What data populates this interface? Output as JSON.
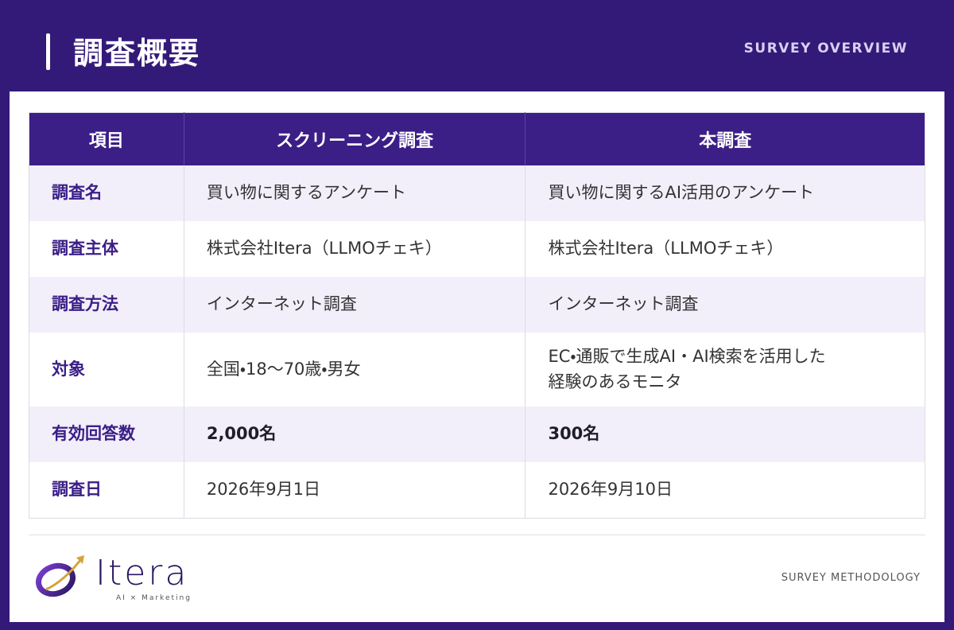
{
  "header": {
    "title": "調査概要",
    "subtitle": "SURVEY OVERVIEW"
  },
  "table": {
    "columns": [
      "項目",
      "スクリーニング調査",
      "本調査"
    ],
    "rows": [
      [
        "調査名",
        "買い物に関するアンケート",
        "買い物に関するAI活用のアンケート"
      ],
      [
        "調査主体",
        "株式会社Itera（LLMOチェキ）",
        "株式会社Itera（LLMOチェキ）"
      ],
      [
        "調査方法",
        "インターネット調査",
        "インターネット調査"
      ],
      [
        "対象",
        "全国・18〜70歳・男女",
        "EC・通販で生成AI・AI検索を活用した\n経験のあるモニタ"
      ],
      [
        "有効回答数",
        "2,000名",
        "300名"
      ],
      [
        "調査日",
        "2026年9月1日",
        "2026年9月10日"
      ]
    ]
  },
  "footer": {
    "logo_name": "Itera",
    "logo_tagline": "AI × Marketing",
    "label": "SURVEY METHODOLOGY"
  }
}
